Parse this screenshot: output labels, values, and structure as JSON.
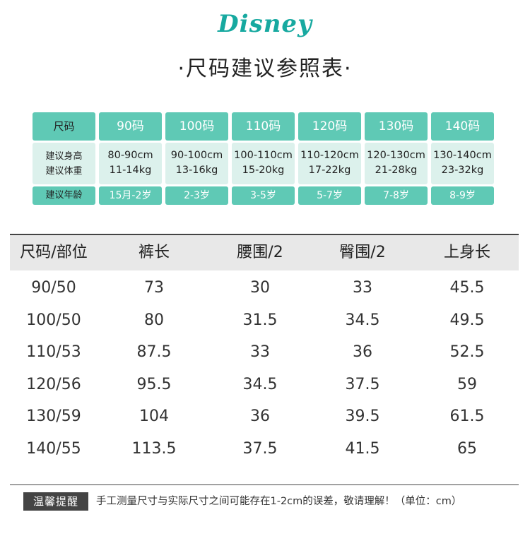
{
  "brand": "Disney",
  "title": "·尺码建议参照表·",
  "size_guide": {
    "header_label": "尺码",
    "sizes": [
      "90码",
      "100码",
      "110码",
      "120码",
      "130码",
      "140码"
    ],
    "height_label": "建议身高",
    "weight_label": "建议体重",
    "age_label": "建议年龄",
    "heights": [
      "80-90cm",
      "90-100cm",
      "100-110cm",
      "110-120cm",
      "120-130cm",
      "130-140cm"
    ],
    "weights": [
      "11-14kg",
      "13-16kg",
      "15-20kg",
      "17-22kg",
      "21-28kg",
      "23-32kg"
    ],
    "ages": [
      "15月-2岁",
      "2-3岁",
      "3-5岁",
      "5-7岁",
      "7-8岁",
      "8-9岁"
    ]
  },
  "measurements": {
    "headers": [
      "尺码/部位",
      "裤长",
      "腰围/2",
      "臀围/2",
      "上身长"
    ],
    "rows": [
      [
        "90/50",
        "73",
        "30",
        "33",
        "45.5"
      ],
      [
        "100/50",
        "80",
        "31.5",
        "34.5",
        "49.5"
      ],
      [
        "110/53",
        "87.5",
        "33",
        "36",
        "52.5"
      ],
      [
        "120/56",
        "95.5",
        "34.5",
        "37.5",
        "59"
      ],
      [
        "130/59",
        "104",
        "36",
        "39.5",
        "61.5"
      ],
      [
        "140/55",
        "113.5",
        "37.5",
        "41.5",
        "65"
      ]
    ]
  },
  "reminder": {
    "badge": "温馨提醒",
    "text": "手工测量尺寸与实际尺寸之间可能存在1-2cm的误差，敬请理解！（单位：cm）"
  },
  "colors": {
    "accent": "#5fc9b5",
    "accent_light": "#dcf1ec",
    "brand": "#17a9a0"
  }
}
